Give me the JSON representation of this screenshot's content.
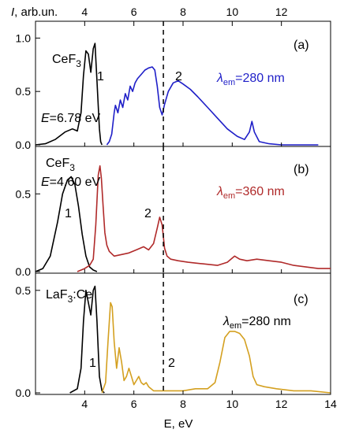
{
  "chart_data": {
    "type": "line",
    "xlabel": "E, eV",
    "ylabel": "I, arb.un.",
    "ylabel_italic": "I",
    "ylabel_rest": ", arb.un.",
    "xlim": [
      2,
      14
    ],
    "x_ticks": [
      4,
      6,
      8,
      10,
      12,
      14
    ],
    "x_tick_labels": [
      "4",
      "6",
      "8",
      "10",
      "12",
      "14"
    ],
    "top_x_ticks": [
      4,
      6,
      8,
      10,
      12
    ],
    "top_x_tick_labels": [
      "4",
      "6",
      "8",
      "10",
      "12"
    ],
    "dashed_line_x": 7.2,
    "grid": false,
    "panels": [
      {
        "label": "(a)",
        "compound": "CeF",
        "compound_sub": "3",
        "excitation": "=6.78 eV",
        "emission_value": "=280 nm",
        "emission_color": "#1f1fc8",
        "ylim": [
          0,
          1.15
        ],
        "y_ticks": [
          0,
          0.5,
          1.0
        ],
        "y_tick_labels": [
          "0.0",
          "0.5",
          "1.0"
        ],
        "series": [
          {
            "name": "1",
            "color": "#000000",
            "x": [
              2.0,
              2.4,
              2.8,
              3.2,
              3.5,
              3.7,
              3.85,
              3.95,
              4.05,
              4.15,
              4.25,
              4.35,
              4.42,
              4.5,
              4.6,
              4.65,
              4.7
            ],
            "y": [
              0.0,
              0.01,
              0.05,
              0.12,
              0.15,
              0.13,
              0.3,
              0.65,
              0.88,
              0.85,
              0.68,
              0.9,
              0.95,
              0.6,
              0.15,
              0.03,
              0.0
            ]
          },
          {
            "name": "2",
            "color": "#1f1fc8",
            "x": [
              4.9,
              5.0,
              5.1,
              5.2,
              5.25,
              5.35,
              5.45,
              5.55,
              5.65,
              5.75,
              5.85,
              5.95,
              6.05,
              6.15,
              6.3,
              6.45,
              6.6,
              6.75,
              6.85,
              6.95,
              7.05,
              7.15,
              7.25,
              7.4,
              7.6,
              7.8,
              8.0,
              8.3,
              8.6,
              9.0,
              9.4,
              9.8,
              10.2,
              10.5,
              10.7,
              10.8,
              10.9,
              11.1,
              11.5,
              12.0,
              12.5,
              13.0,
              13.5
            ],
            "y": [
              0.0,
              0.03,
              0.1,
              0.3,
              0.37,
              0.3,
              0.42,
              0.35,
              0.48,
              0.42,
              0.55,
              0.5,
              0.58,
              0.62,
              0.66,
              0.7,
              0.72,
              0.73,
              0.7,
              0.55,
              0.35,
              0.28,
              0.38,
              0.5,
              0.58,
              0.6,
              0.57,
              0.52,
              0.45,
              0.35,
              0.25,
              0.15,
              0.08,
              0.05,
              0.12,
              0.22,
              0.12,
              0.03,
              0.01,
              0.0,
              0.0,
              0.0,
              0.0
            ]
          }
        ]
      },
      {
        "label": "(b)",
        "compound": "CeF",
        "compound_sub": "3",
        "excitation": "=4.60 eV",
        "emission_value": "=360 nm",
        "emission_color": "#b02a2a",
        "ylim": [
          0,
          0.8
        ],
        "y_ticks": [
          0,
          0.5
        ],
        "y_tick_labels": [
          "0.0",
          "0.5"
        ],
        "series": [
          {
            "name": "1",
            "color": "#000000",
            "x": [
              2.0,
              2.3,
              2.6,
              2.9,
              3.1,
              3.3,
              3.45,
              3.6,
              3.75,
              3.9,
              4.05,
              4.2,
              4.35,
              4.5
            ],
            "y": [
              0.0,
              0.02,
              0.1,
              0.32,
              0.5,
              0.59,
              0.61,
              0.56,
              0.42,
              0.24,
              0.1,
              0.03,
              0.01,
              0.0
            ]
          },
          {
            "name": "2",
            "color": "#b02a2a",
            "x": [
              3.7,
              4.0,
              4.2,
              4.35,
              4.45,
              4.55,
              4.62,
              4.68,
              4.75,
              4.82,
              4.9,
              5.0,
              5.2,
              5.5,
              5.8,
              6.1,
              6.4,
              6.6,
              6.8,
              6.95,
              7.05,
              7.15,
              7.25,
              7.35,
              7.5,
              7.8,
              8.2,
              8.8,
              9.4,
              9.8,
              10.1,
              10.3,
              10.6,
              11.0,
              11.5,
              12.0,
              12.5,
              13.0,
              13.5,
              14.0
            ],
            "y": [
              0.0,
              0.02,
              0.04,
              0.08,
              0.3,
              0.62,
              0.68,
              0.6,
              0.42,
              0.25,
              0.17,
              0.13,
              0.1,
              0.11,
              0.12,
              0.14,
              0.16,
              0.14,
              0.18,
              0.28,
              0.35,
              0.3,
              0.15,
              0.1,
              0.08,
              0.07,
              0.06,
              0.05,
              0.04,
              0.06,
              0.1,
              0.08,
              0.07,
              0.08,
              0.07,
              0.06,
              0.04,
              0.03,
              0.02,
              0.02
            ]
          }
        ]
      },
      {
        "label": "(c)",
        "compound": "LaF",
        "compound_sub": "3",
        "compound_rest": ":Ce",
        "emission_value": "=280 nm",
        "emission_color": "#000000",
        "ylim": [
          0,
          0.58
        ],
        "y_ticks": [
          0,
          0.5
        ],
        "y_tick_labels": [
          "0.0",
          "0.5"
        ],
        "series": [
          {
            "name": "1",
            "color": "#000000",
            "x": [
              3.4,
              3.7,
              3.85,
              3.95,
              4.05,
              4.15,
              4.25,
              4.35,
              4.42,
              4.5,
              4.6,
              4.7,
              4.8
            ],
            "y": [
              0.0,
              0.02,
              0.12,
              0.35,
              0.5,
              0.44,
              0.38,
              0.5,
              0.52,
              0.35,
              0.08,
              0.01,
              0.0
            ]
          },
          {
            "name": "2",
            "color": "#d4a020",
            "x": [
              4.7,
              4.85,
              4.95,
              5.05,
              5.12,
              5.2,
              5.3,
              5.4,
              5.5,
              5.6,
              5.7,
              5.8,
              5.9,
              6.0,
              6.1,
              6.2,
              6.3,
              6.4,
              6.5,
              6.6,
              6.8,
              7.0,
              7.5,
              8.0,
              8.5,
              9.0,
              9.3,
              9.5,
              9.7,
              9.9,
              10.1,
              10.3,
              10.5,
              10.7,
              10.85,
              11.0,
              11.3,
              11.8,
              12.5,
              13.2,
              14.0
            ],
            "y": [
              0.0,
              0.05,
              0.25,
              0.44,
              0.42,
              0.25,
              0.12,
              0.22,
              0.15,
              0.06,
              0.08,
              0.12,
              0.08,
              0.04,
              0.06,
              0.08,
              0.05,
              0.04,
              0.05,
              0.03,
              0.01,
              0.01,
              0.01,
              0.01,
              0.02,
              0.02,
              0.05,
              0.15,
              0.27,
              0.3,
              0.3,
              0.29,
              0.26,
              0.18,
              0.08,
              0.04,
              0.03,
              0.02,
              0.01,
              0.01,
              0.0
            ]
          }
        ]
      }
    ]
  }
}
